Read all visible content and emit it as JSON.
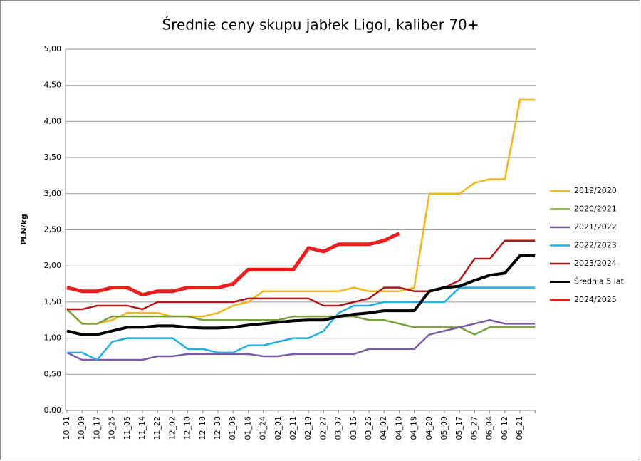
{
  "chart_data": {
    "type": "line",
    "title": "Średnie ceny skupu jabłek Ligol, kaliber 70+",
    "y_label": "PLN/kg",
    "categories": [
      "10_01",
      "10_09",
      "10_17",
      "10_25",
      "11_05",
      "11_14",
      "11_22",
      "12_02",
      "12_10",
      "12_18",
      "12_30",
      "01_08",
      "01_16",
      "01_24",
      "02_01",
      "02_11",
      "02_19",
      "02_27",
      "03_07",
      "03_15",
      "03_25",
      "04_02",
      "04_10",
      "04_18",
      "04_29",
      "05_09",
      "05_17",
      "05_27",
      "06_04",
      "06_12",
      "06_21",
      null
    ],
    "series": [
      {
        "name": "2019/2020",
        "color": "#f4b41a",
        "width": 2.5,
        "values": [
          1.4,
          1.2,
          1.2,
          1.25,
          1.35,
          1.35,
          1.35,
          1.3,
          1.3,
          1.3,
          1.35,
          1.45,
          1.5,
          1.65,
          1.65,
          1.65,
          1.65,
          1.65,
          1.65,
          1.7,
          1.65,
          1.65,
          1.65,
          1.7,
          3.0,
          3.0,
          3.0,
          3.15,
          3.2,
          3.2,
          4.3,
          4.3
        ]
      },
      {
        "name": "2020/2021",
        "color": "#77a038",
        "width": 2.5,
        "values": [
          1.4,
          1.2,
          1.2,
          1.3,
          1.3,
          1.3,
          1.3,
          1.3,
          1.3,
          1.25,
          1.25,
          1.25,
          1.25,
          1.25,
          1.25,
          1.3,
          1.3,
          1.3,
          1.3,
          1.3,
          1.25,
          1.25,
          1.2,
          1.15,
          1.15,
          1.15,
          1.15,
          1.05,
          1.15,
          1.15,
          1.15,
          1.15
        ]
      },
      {
        "name": "2021/2022",
        "color": "#7b5aa6",
        "width": 2.5,
        "values": [
          0.8,
          0.7,
          0.7,
          0.7,
          0.7,
          0.7,
          0.75,
          0.75,
          0.78,
          0.78,
          0.78,
          0.78,
          0.78,
          0.75,
          0.75,
          0.78,
          0.78,
          0.78,
          0.78,
          0.78,
          0.85,
          0.85,
          0.85,
          0.85,
          1.05,
          1.1,
          1.15,
          1.2,
          1.25,
          1.2,
          1.2,
          1.2
        ]
      },
      {
        "name": "2022/2023",
        "color": "#1eaee8",
        "width": 2.5,
        "values": [
          0.8,
          0.8,
          0.7,
          0.95,
          1.0,
          1.0,
          1.0,
          1.0,
          0.85,
          0.85,
          0.8,
          0.8,
          0.9,
          0.9,
          0.95,
          1.0,
          1.0,
          1.1,
          1.35,
          1.45,
          1.45,
          1.5,
          1.5,
          1.5,
          1.5,
          1.5,
          1.7,
          1.7,
          1.7,
          1.7,
          1.7,
          1.7
        ]
      },
      {
        "name": "2023/2024",
        "color": "#b01818",
        "width": 2.5,
        "values": [
          1.4,
          1.4,
          1.45,
          1.45,
          1.45,
          1.4,
          1.5,
          1.5,
          1.5,
          1.5,
          1.5,
          1.5,
          1.55,
          1.55,
          1.55,
          1.55,
          1.55,
          1.45,
          1.45,
          1.5,
          1.55,
          1.7,
          1.7,
          1.65,
          1.65,
          1.7,
          1.8,
          2.1,
          2.1,
          2.35,
          2.35,
          2.35
        ]
      },
      {
        "name": "Średnia 5 lat",
        "color": "#000000",
        "width": 4,
        "values": [
          1.1,
          1.05,
          1.05,
          1.1,
          1.15,
          1.15,
          1.17,
          1.17,
          1.15,
          1.14,
          1.14,
          1.15,
          1.18,
          1.2,
          1.22,
          1.24,
          1.25,
          1.25,
          1.3,
          1.33,
          1.35,
          1.38,
          1.38,
          1.38,
          1.65,
          1.7,
          1.72,
          1.8,
          1.87,
          1.9,
          2.14,
          2.14
        ]
      },
      {
        "name": "2024/2025",
        "color": "#ee1c1c",
        "width": 5,
        "values": [
          1.7,
          1.65,
          1.65,
          1.7,
          1.7,
          1.6,
          1.65,
          1.65,
          1.7,
          1.7,
          1.7,
          1.75,
          1.95,
          1.95,
          1.95,
          1.95,
          2.25,
          2.2,
          2.3,
          2.3,
          2.3,
          2.35,
          2.45,
          null,
          null,
          null,
          null,
          null,
          null,
          null,
          null,
          null
        ]
      }
    ],
    "ylim": [
      0,
      5
    ],
    "yticks": [
      {
        "value": 0,
        "label": "0,00"
      },
      {
        "value": 0.5,
        "label": "0,50"
      },
      {
        "value": 1,
        "label": "1,00"
      },
      {
        "value": 1.5,
        "label": "1,50"
      },
      {
        "value": 2,
        "label": "2,00"
      },
      {
        "value": 2.5,
        "label": "2,50"
      },
      {
        "value": 3,
        "label": "3,00"
      },
      {
        "value": 3.5,
        "label": "3,50"
      },
      {
        "value": 4,
        "label": "4,00"
      },
      {
        "value": 4.5,
        "label": "4,50"
      },
      {
        "value": 5,
        "label": "5,00"
      }
    ],
    "grid": true,
    "legend": "right"
  }
}
